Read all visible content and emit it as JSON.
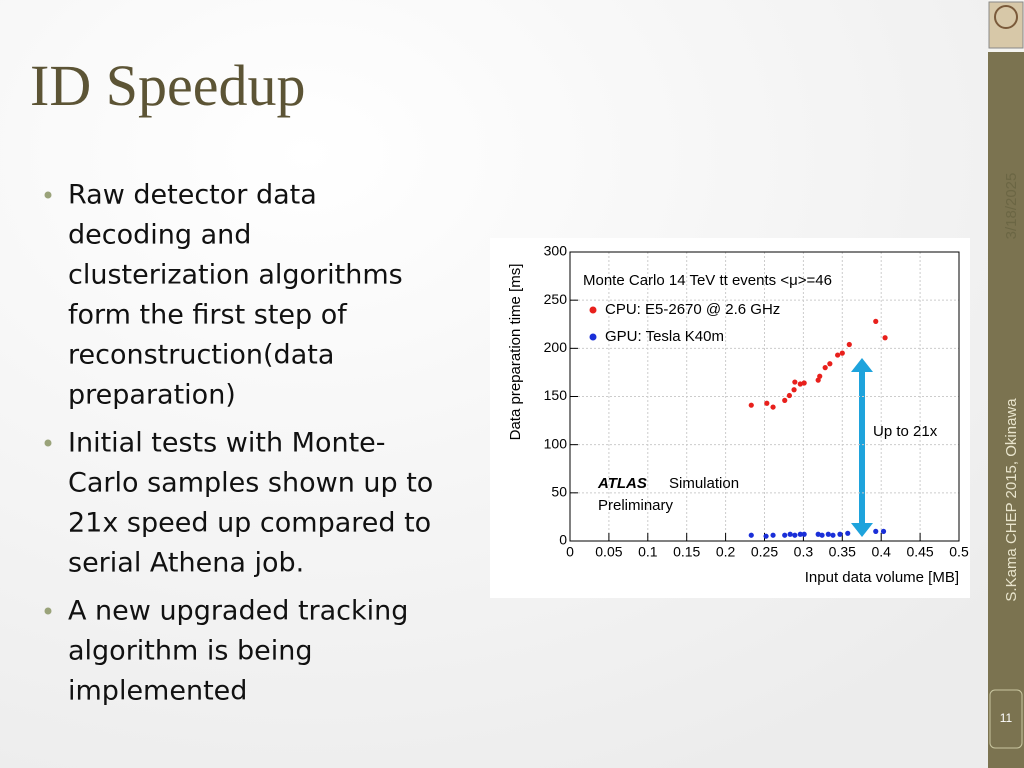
{
  "slide": {
    "title": "ID Speedup",
    "bullets": [
      [
        "Raw detector data",
        "decoding and",
        "clusterization algorithms",
        "form the first step of",
        "reconstruction(data",
        "preparation)"
      ],
      [
        "Initial tests with Monte-",
        "Carlo samples shown up to",
        "21x speed up compared to",
        "serial Athena job."
      ],
      [
        "A new upgraded tracking",
        "algorithm is being",
        "implemented"
      ]
    ],
    "date": "3/18/2025",
    "footer": "S.Kama CHEP 2015, Okinawa",
    "page_number": "11"
  },
  "chart_data": {
    "type": "scatter",
    "annotations": [
      "Monte Carlo 14 TeV tt events <μ>=46",
      "ATLAS",
      "Simulation",
      "Preliminary",
      "Up to 21x"
    ],
    "x_label": "Input data volume [MB]",
    "y_label": "Data preparation time [ms]",
    "xlim": [
      0,
      0.5
    ],
    "ylim": [
      0,
      300
    ],
    "xticks": [
      0,
      0.05,
      0.1,
      0.15,
      0.2,
      0.25,
      0.3,
      0.35,
      0.4,
      0.45,
      0.5
    ],
    "yticks": [
      0,
      50,
      100,
      150,
      200,
      250,
      300
    ],
    "grid": true,
    "series": [
      {
        "name": "CPU: E5-2670 @ 2.6 GHz",
        "color": "#e8201c",
        "x": [
          0.233,
          0.253,
          0.261,
          0.276,
          0.282,
          0.288,
          0.289,
          0.296,
          0.301,
          0.319,
          0.321,
          0.328,
          0.334,
          0.344,
          0.35,
          0.359,
          0.393,
          0.405
        ],
        "values": [
          141,
          143,
          139,
          146,
          151,
          157,
          165,
          163,
          164,
          167,
          171,
          180,
          184,
          193,
          195,
          204,
          228,
          211
        ]
      },
      {
        "name": "GPU: Tesla K40m",
        "color": "#1a2fd8",
        "x": [
          0.233,
          0.252,
          0.261,
          0.276,
          0.283,
          0.289,
          0.296,
          0.301,
          0.319,
          0.324,
          0.332,
          0.338,
          0.347,
          0.357,
          0.393,
          0.403
        ],
        "values": [
          6,
          5,
          6,
          6,
          7,
          6,
          7,
          7,
          7,
          6,
          7,
          6,
          7,
          8,
          10,
          10
        ]
      }
    ]
  }
}
